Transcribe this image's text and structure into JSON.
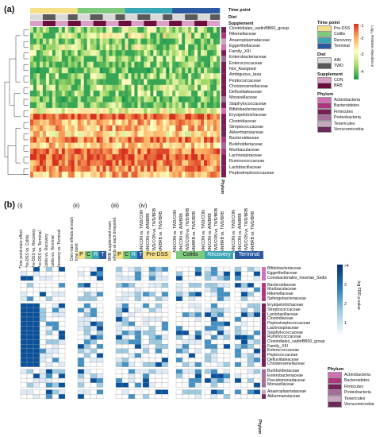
{
  "panel_a": {
    "label": "(a)",
    "track_labels": [
      "Time point",
      "Diet",
      "Supplement"
    ],
    "families": [
      "Clostridiales_vadinBB60_group",
      "Rikenellaceae",
      "Anaeroplasmataceae",
      "Eggerthellaceae",
      "Family_XIII",
      "Enterobacteriaceae",
      "Enterococcaceae",
      "Not_Assigned",
      "Ambiguous_taxa",
      "Peptococcaceae",
      "Christensenellaceae",
      "Defluviitaleaceae",
      "Moraxellaceae",
      "Staphylococcaceae",
      "Bifidobacteriaceae",
      "Erysipelotrichaceae",
      "Clostridiaceae",
      "Streptococcaceae",
      "Akkermansiaceae",
      "Bacteroidaceae",
      "Burkholderiaceae",
      "Muribaculaceae",
      "Lachnospiraceae",
      "Ruminococcaceae",
      "Lactobacillaceae",
      "Peptostreptococcaceae"
    ],
    "phylum_axis": "Phylum",
    "legend": {
      "colorbar_title": "Log₁₀ Relative Abundance",
      "colorbar_ticks": [
        "-1",
        "-2",
        "-3",
        "-4"
      ],
      "time_point_title": "Time point",
      "time_points": [
        {
          "label": "Pre-DSS",
          "color": "#f5e08a"
        },
        {
          "label": "Colitis",
          "color": "#7fc97f"
        },
        {
          "label": "Recovery",
          "color": "#3aa5b5"
        },
        {
          "label": "Terminal",
          "color": "#2c5aa0"
        }
      ],
      "diet_title": "Diet",
      "diets": [
        {
          "label": "AIN",
          "color": "#d9d9d9"
        },
        {
          "label": "TWD",
          "color": "#5a5a5a"
        }
      ],
      "supplement_title": "Supplement",
      "supplements": [
        {
          "label": "CON",
          "color": "#d9a0c8"
        },
        {
          "label": "BRB",
          "color": "#6b0f3a"
        }
      ],
      "phylum_title": "Phylum",
      "phyla": [
        {
          "label": "Actinobacteria",
          "color": "#d36fb5"
        },
        {
          "label": "Bacteroidetes",
          "color": "#b0357f"
        },
        {
          "label": "Firmicutes",
          "color": "#7a1f55"
        },
        {
          "label": "Proteobacteria",
          "color": "#a56d9a"
        },
        {
          "label": "Tenericutes",
          "color": "#c9a7c1"
        },
        {
          "label": "Verrucomicrobia",
          "color": "#6e2a5c"
        }
      ]
    }
  },
  "panel_b": {
    "label": "(b)",
    "section_labels": [
      "(i)",
      "(ii)",
      "(iii)",
      "(iv)"
    ],
    "group_i_headers": [
      "Time point main effect",
      "Pre-DSS vs. Colitis",
      "Pre-DSS vs. Recovery",
      "Pre-DSS vs. Terminal",
      "Colitis vs. Recovery",
      "Colitis vs. Terminal",
      "Recovery vs. Terminal"
    ],
    "group_ii_header": "Diet main effects at each time point",
    "group_iii_header": "BRB supplement main effects at each timepoint",
    "group_iv_headers": [
      "AIN/CON vs. TWD/CON",
      "AIN/CON vs. AIN/BRB",
      "TWD/CON vs. TWD/BRB",
      "AIN/BRB vs. TWD/BRB"
    ],
    "tp_letters": [
      "P",
      "C",
      "R",
      "T"
    ],
    "tp_boxes": [
      "Pre-DSS",
      "Colitis",
      "Recovery",
      "Terminal"
    ],
    "families": [
      "Bifidobacteriaceae",
      "Eggerthellaceae",
      "Conobacteriales_Incertae_Sedis",
      "Bacteroidaceae",
      "Muribaculaceae",
      "Rikenellaceae",
      "Sphingobacteriaceae",
      "Erysipelotrichaceae",
      "Streptococcaceae",
      "Lactobacillaceae",
      "Clostridiaceae",
      "Peptostreptococcaceae",
      "Lachnospiraceae",
      "Staphylococcaceae",
      "Ruminococcaceae",
      "Clostridiales_vadinBB60_group",
      "Family_XIII",
      "Enterococcaceae",
      "Peptococcaceae",
      "Defluviitaleaceae",
      "Christensenellaceae",
      "Burkholderiaceae",
      "Enterobacteriaceae",
      "Pseudomonadaceae",
      "Moraxellaceae",
      "Anaeroplasmataceae",
      "Akkermansiaceae"
    ],
    "phylum_axis": "Phylum",
    "colorbar_title": "-log FDR p-value",
    "colorbar_ticks": [
      ">4",
      "3",
      "2",
      "1"
    ],
    "phylum_title": "Phylum",
    "phyla": [
      {
        "label": "Actinobacteria",
        "color": "#d36fb5"
      },
      {
        "label": "Bacteroidetes",
        "color": "#b0357f"
      },
      {
        "label": "Firmicutes",
        "color": "#7a1f55"
      },
      {
        "label": "Proteobacteria",
        "color": "#a56d9a"
      },
      {
        "label": "Tenericutes",
        "color": "#c9a7c1"
      },
      {
        "label": "Verrucomicrobia",
        "color": "#6e2a5c"
      }
    ]
  }
}
